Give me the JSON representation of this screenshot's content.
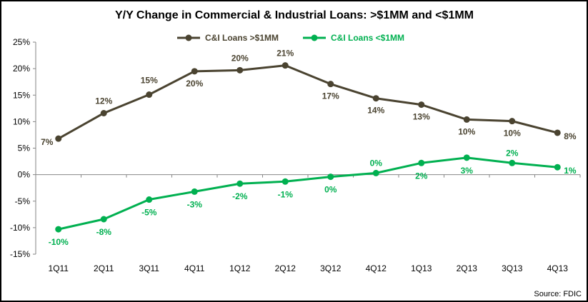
{
  "chart_data": {
    "type": "line",
    "title": "Y/Y Change in Commercial & Industrial Loans: >$1MM and <$1MM",
    "xlabel": "",
    "ylabel": "",
    "categories": [
      "1Q11",
      "2Q11",
      "3Q11",
      "4Q11",
      "1Q12",
      "2Q12",
      "3Q12",
      "4Q12",
      "1Q13",
      "2Q13",
      "3Q13",
      "4Q13"
    ],
    "ylim": [
      -15,
      25
    ],
    "yticks": [
      -15,
      -10,
      -5,
      0,
      5,
      10,
      15,
      20,
      25
    ],
    "ytick_labels": [
      "-15%",
      "-10%",
      "-5%",
      "0%",
      "5%",
      "10%",
      "15%",
      "20%",
      "25%"
    ],
    "grid": false,
    "legend_position": "top-center",
    "series": [
      {
        "name": "C&I Loans >$1MM",
        "color": "#4a4330",
        "values": [
          6.8,
          11.6,
          15.1,
          19.5,
          19.7,
          20.6,
          17.1,
          14.4,
          13.2,
          10.4,
          10.1,
          7.9
        ],
        "labels": [
          "7%",
          "12%",
          "15%",
          "20%",
          "20%",
          "21%",
          "17%",
          "14%",
          "13%",
          "10%",
          "10%",
          "8%"
        ]
      },
      {
        "name": "C&I Loans <$1MM",
        "color": "#00b050",
        "values": [
          -10.3,
          -8.4,
          -4.7,
          -3.2,
          -1.7,
          -1.3,
          -0.4,
          0.3,
          2.2,
          3.2,
          2.2,
          1.4
        ],
        "labels": [
          "-10%",
          "-8%",
          "-5%",
          "-3%",
          "-2%",
          "-1%",
          "0%",
          "0%",
          "2%",
          "3%",
          "2%",
          "1%"
        ]
      }
    ],
    "source": "Source: FDIC"
  }
}
